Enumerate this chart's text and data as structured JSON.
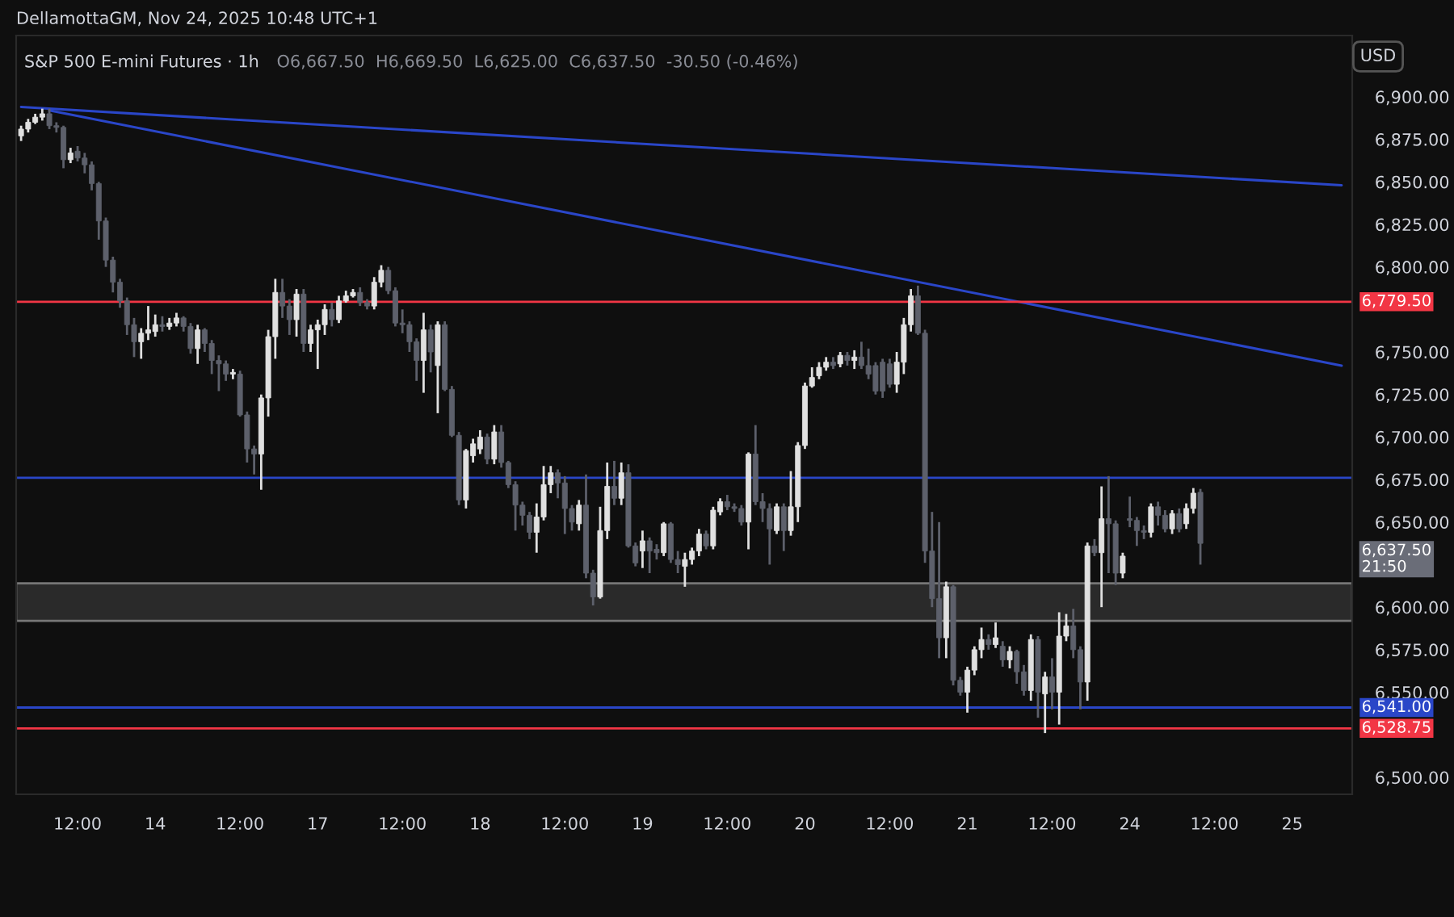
{
  "chart_data": {
    "type": "candlestick",
    "title": "S&P 500 E-mini Futures · 1h",
    "subtitle": "O6,667.50  H6,669.50  L6,625.00  C6,637.50  -30.50 (-0.46%)",
    "annotations": [
      "DellamottaGM, Nov 24, 2025 10:48 UTC+1",
      "USD",
      "6,637.50",
      "21:50"
    ],
    "categories": [
      null,
      null,
      null,
      null,
      null,
      null,
      null,
      null,
      "12:00",
      null,
      null,
      null,
      null,
      null,
      null,
      null,
      null,
      null,
      null,
      "14",
      null,
      null,
      null,
      null,
      null,
      null,
      null,
      null,
      null,
      null,
      null,
      "12:00",
      null,
      null,
      null,
      null,
      null,
      null,
      null,
      null,
      null,
      null,
      "17",
      null,
      null,
      null,
      null,
      null,
      null,
      null,
      null,
      null,
      null,
      null,
      "12:00",
      null,
      null,
      null,
      null,
      null,
      null,
      null,
      null,
      null,
      null,
      "18",
      null,
      null,
      null,
      null,
      null,
      null,
      null,
      null,
      null,
      null,
      null,
      "12:00",
      null,
      null,
      null,
      null,
      null,
      null,
      null,
      null,
      null,
      null,
      "19",
      null,
      null,
      null,
      null,
      null,
      null,
      null,
      null,
      null,
      null,
      null,
      "12:00",
      null,
      null,
      null,
      null,
      null,
      null,
      null,
      null,
      null,
      null,
      "20",
      null,
      null,
      null,
      null,
      null,
      null,
      null,
      null,
      null,
      null,
      null,
      "12:00",
      null,
      null,
      null,
      null,
      null,
      null,
      null,
      null,
      null,
      null,
      "21",
      null,
      null,
      null,
      null,
      null,
      null,
      null,
      null,
      null,
      null,
      null,
      "12:00",
      null,
      null,
      null,
      null,
      null,
      null,
      null,
      null,
      null,
      null,
      "24",
      null,
      null,
      null,
      null,
      null,
      null,
      null,
      null,
      null,
      null,
      null,
      "12:00",
      null,
      null,
      null,
      null,
      null,
      null,
      null,
      null,
      null,
      null,
      "25",
      null,
      null,
      null,
      null,
      null,
      null,
      null,
      null
    ],
    "ohlc": [
      [
        6877,
        6883,
        6874,
        6881
      ],
      [
        6881,
        6887,
        6879,
        6885
      ],
      [
        6885,
        6890,
        6884,
        6888
      ],
      [
        6888,
        6893,
        6886,
        6890
      ],
      [
        6890,
        6893,
        6881,
        6883
      ],
      [
        6883,
        6885,
        6879,
        6882
      ],
      [
        6882,
        6883,
        6858,
        6863
      ],
      [
        6863,
        6870,
        6861,
        6867
      ],
      [
        6868,
        6871,
        6862,
        6864
      ],
      [
        6864,
        6867,
        6855,
        6860
      ],
      [
        6860,
        6862,
        6845,
        6849
      ],
      [
        6849,
        6850,
        6816,
        6827
      ],
      [
        6827,
        6829,
        6800,
        6804
      ],
      [
        6804,
        6806,
        6785,
        6791
      ],
      [
        6791,
        6793,
        6776,
        6780
      ],
      [
        6780,
        6782,
        6760,
        6766
      ],
      [
        6766,
        6770,
        6747,
        6756
      ],
      [
        6756,
        6764,
        6746,
        6761
      ],
      [
        6761,
        6777,
        6757,
        6763
      ],
      [
        6762,
        6772,
        6759,
        6766
      ],
      [
        6766,
        6771,
        6762,
        6765
      ],
      [
        6765,
        6770,
        6763,
        6767
      ],
      [
        6767,
        6773,
        6765,
        6770
      ],
      [
        6770,
        6771,
        6762,
        6765
      ],
      [
        6765,
        6767,
        6749,
        6752
      ],
      [
        6752,
        6766,
        6743,
        6763
      ],
      [
        6763,
        6764,
        6750,
        6755
      ],
      [
        6755,
        6757,
        6737,
        6745
      ],
      [
        6745,
        6748,
        6727,
        6743
      ],
      [
        6743,
        6745,
        6733,
        6737
      ],
      [
        6737,
        6740,
        6734,
        6738
      ],
      [
        6737,
        6739,
        6712,
        6713
      ],
      [
        6713,
        6715,
        6685,
        6693
      ],
      [
        6693,
        6695,
        6678,
        6690
      ],
      [
        6690,
        6725,
        6669,
        6723
      ],
      [
        6723,
        6763,
        6712,
        6759
      ],
      [
        6759,
        6793,
        6746,
        6785
      ],
      [
        6785,
        6793,
        6770,
        6777
      ],
      [
        6777,
        6781,
        6760,
        6769
      ],
      [
        6769,
        6787,
        6759,
        6784
      ],
      [
        6784,
        6787,
        6750,
        6755
      ],
      [
        6755,
        6766,
        6750,
        6763
      ],
      [
        6763,
        6769,
        6740,
        6766
      ],
      [
        6766,
        6778,
        6760,
        6775
      ],
      [
        6775,
        6779,
        6765,
        6769
      ],
      [
        6769,
        6783,
        6767,
        6780
      ],
      [
        6780,
        6786,
        6779,
        6783
      ],
      [
        6783,
        6787,
        6782,
        6785
      ],
      [
        6785,
        6788,
        6777,
        6779
      ],
      [
        6779,
        6781,
        6775,
        6777
      ],
      [
        6777,
        6794,
        6775,
        6791
      ],
      [
        6791,
        6801,
        6788,
        6798
      ],
      [
        6798,
        6800,
        6784,
        6786
      ],
      [
        6786,
        6788,
        6765,
        6767
      ],
      [
        6767,
        6775,
        6761,
        6766
      ],
      [
        6766,
        6768,
        6750,
        6756
      ],
      [
        6756,
        6758,
        6733,
        6745
      ],
      [
        6745,
        6773,
        6726,
        6763
      ],
      [
        6763,
        6766,
        6738,
        6750
      ],
      [
        6742,
        6768,
        6714,
        6766
      ],
      [
        6766,
        6768,
        6727,
        6728
      ],
      [
        6728,
        6730,
        6700,
        6701
      ],
      [
        6701,
        6703,
        6660,
        6663
      ],
      [
        6663,
        6693,
        6658,
        6692
      ],
      [
        6689,
        6699,
        6685,
        6696
      ],
      [
        6693,
        6704,
        6690,
        6700
      ],
      [
        6700,
        6702,
        6684,
        6687
      ],
      [
        6687,
        6707,
        6684,
        6703
      ],
      [
        6703,
        6707,
        6682,
        6685
      ],
      [
        6685,
        6686,
        6670,
        6672
      ],
      [
        6672,
        6674,
        6645,
        6660
      ],
      [
        6660,
        6662,
        6648,
        6654
      ],
      [
        6654,
        6656,
        6640,
        6644
      ],
      [
        6644,
        6661,
        6632,
        6653
      ],
      [
        6653,
        6683,
        6651,
        6672
      ],
      [
        6672,
        6683,
        6667,
        6679
      ],
      [
        6679,
        6681,
        6664,
        6673
      ],
      [
        6673,
        6677,
        6643,
        6658
      ],
      [
        6658,
        6660,
        6645,
        6650
      ],
      [
        6649,
        6663,
        6645,
        6660
      ],
      [
        6660,
        6678,
        6617,
        6620
      ],
      [
        6620,
        6622,
        6601,
        6606
      ],
      [
        6606,
        6659,
        6605,
        6645
      ],
      [
        6645,
        6685,
        6640,
        6671
      ],
      [
        6671,
        6686,
        6660,
        6664
      ],
      [
        6664,
        6685,
        6660,
        6679
      ],
      [
        6679,
        6684,
        6635,
        6636
      ],
      [
        6636,
        6638,
        6624,
        6626
      ],
      [
        6633,
        6645,
        6623,
        6639
      ],
      [
        6639,
        6641,
        6620,
        6633
      ],
      [
        6634,
        6637,
        6628,
        6632
      ],
      [
        6632,
        6650,
        6630,
        6649
      ],
      [
        6649,
        6650,
        6626,
        6628
      ],
      [
        6628,
        6633,
        6620,
        6625
      ],
      [
        6624,
        6632,
        6612,
        6628
      ],
      [
        6628,
        6635,
        6625,
        6633
      ],
      [
        6633,
        6646,
        6630,
        6643
      ],
      [
        6643,
        6645,
        6634,
        6636
      ],
      [
        6636,
        6659,
        6634,
        6657
      ],
      [
        6656,
        6664,
        6654,
        6662
      ],
      [
        6662,
        6666,
        6657,
        6659
      ],
      [
        6659,
        6661,
        6656,
        6658
      ],
      [
        6658,
        6660,
        6648,
        6650
      ],
      [
        6650,
        6691,
        6634,
        6690
      ],
      [
        6690,
        6707,
        6660,
        6662
      ],
      [
        6662,
        6667,
        6650,
        6658
      ],
      [
        6658,
        6661,
        6625,
        6646
      ],
      [
        6645,
        6661,
        6643,
        6659
      ],
      [
        6659,
        6661,
        6633,
        6645
      ],
      [
        6645,
        6680,
        6642,
        6659
      ],
      [
        6659,
        6697,
        6650,
        6695
      ],
      [
        6695,
        6732,
        6693,
        6730
      ],
      [
        6730,
        6741,
        6729,
        6735
      ],
      [
        6736,
        6744,
        6734,
        6741
      ],
      [
        6741,
        6747,
        6739,
        6744
      ],
      [
        6744,
        6747,
        6740,
        6742
      ],
      [
        6743,
        6750,
        6741,
        6748
      ],
      [
        6748,
        6750,
        6742,
        6745
      ],
      [
        6745,
        6751,
        6740,
        6747
      ],
      [
        6747,
        6756,
        6740,
        6742
      ],
      [
        6742,
        6752,
        6734,
        6737
      ],
      [
        6742,
        6744,
        6725,
        6727
      ],
      [
        6744,
        6746,
        6723,
        6727
      ],
      [
        6743,
        6746,
        6729,
        6731
      ],
      [
        6731,
        6750,
        6726,
        6744
      ],
      [
        6744,
        6770,
        6737,
        6766
      ],
      [
        6766,
        6787,
        6762,
        6783
      ],
      [
        6783,
        6789,
        6760,
        6761
      ],
      [
        6761,
        6763,
        6626,
        6633
      ],
      [
        6633,
        6656,
        6600,
        6605
      ],
      [
        6605,
        6650,
        6570,
        6582
      ],
      [
        6582,
        6615,
        6570,
        6612
      ],
      [
        6612,
        6613,
        6554,
        6557
      ],
      [
        6557,
        6559,
        6548,
        6550
      ],
      [
        6550,
        6565,
        6538,
        6563
      ],
      [
        6563,
        6577,
        6560,
        6575
      ],
      [
        6575,
        6588,
        6570,
        6581
      ],
      [
        6581,
        6584,
        6575,
        6578
      ],
      [
        6578,
        6591,
        6576,
        6582
      ],
      [
        6577,
        6580,
        6565,
        6569
      ],
      [
        6569,
        6577,
        6564,
        6574
      ],
      [
        6574,
        6575,
        6555,
        6562
      ],
      [
        6562,
        6566,
        6548,
        6551
      ],
      [
        6551,
        6584,
        6545,
        6581
      ],
      [
        6581,
        6583,
        6535,
        6550
      ],
      [
        6549,
        6562,
        6526,
        6559
      ],
      [
        6559,
        6570,
        6540,
        6550
      ],
      [
        6550,
        6597,
        6531,
        6583
      ],
      [
        6583,
        6596,
        6580,
        6589
      ],
      [
        6589,
        6599,
        6570,
        6575
      ],
      [
        6575,
        6577,
        6540,
        6556
      ],
      [
        6556,
        6638,
        6545,
        6636
      ],
      [
        6636,
        6640,
        6630,
        6632
      ],
      [
        6632,
        6671,
        6600,
        6652
      ],
      [
        6652,
        6677,
        6620,
        6649
      ],
      [
        6649,
        6651,
        6613,
        6620
      ],
      [
        6620,
        6632,
        6617,
        6630
      ],
      [
        6652,
        6665,
        6647,
        6651
      ],
      [
        6651,
        6653,
        6636,
        6645
      ],
      [
        6645,
        6648,
        6640,
        6644
      ],
      [
        6644,
        6661,
        6641,
        6659
      ],
      [
        6659,
        6662,
        6648,
        6654
      ],
      [
        6654,
        6657,
        6644,
        6646
      ],
      [
        6646,
        6657,
        6643,
        6655
      ],
      [
        6655,
        6658,
        6644,
        6646
      ],
      [
        6649,
        6661,
        6646,
        6658
      ],
      [
        6658,
        6670,
        6655,
        6667
      ],
      [
        6667.5,
        6669.5,
        6625,
        6637.5
      ],
      null,
      null,
      null,
      null,
      null,
      null,
      null,
      null,
      null,
      null,
      null,
      null,
      null,
      null,
      null,
      null,
      null,
      null,
      null,
      null,
      null
    ],
    "series": [
      {
        "type": "line",
        "color": "#2a46c8",
        "values": [
          6894,
          null,
          null,
          null,
          null,
          null,
          null,
          null,
          null,
          null,
          null,
          null,
          null,
          null,
          null,
          null,
          null,
          null,
          null,
          null,
          null,
          null,
          null,
          null,
          null,
          null,
          null,
          null,
          null,
          null,
          null,
          null,
          null,
          null,
          null,
          null,
          null,
          null,
          null,
          null,
          null,
          null,
          null,
          null,
          null,
          null,
          null,
          null,
          null,
          null,
          null,
          null,
          null,
          null,
          null,
          null,
          null,
          null,
          null,
          null,
          null,
          null,
          null,
          null,
          null,
          null,
          null,
          null,
          null,
          null,
          null,
          null,
          null,
          null,
          null,
          null,
          null,
          null,
          null,
          null,
          null,
          null,
          null,
          null,
          null,
          null,
          null,
          null,
          null,
          null,
          null,
          null,
          null,
          null,
          null,
          null,
          null,
          null,
          null,
          null,
          null,
          null,
          null,
          null,
          null,
          null,
          null,
          null,
          null,
          null,
          null,
          null,
          null,
          null,
          null,
          null,
          null,
          null,
          null,
          null,
          null,
          null,
          null,
          null,
          null,
          null,
          null,
          null,
          null,
          null,
          null,
          null,
          null,
          null,
          null,
          null,
          null,
          null,
          null,
          null,
          null,
          null,
          null,
          null,
          null,
          null,
          null,
          null,
          null,
          null,
          null,
          null,
          null,
          null,
          null,
          null,
          null,
          null,
          null,
          null,
          null,
          null,
          null,
          null,
          null,
          null,
          null,
          null,
          null,
          null,
          null,
          null,
          null,
          null,
          null,
          null,
          null,
          null,
          null,
          null,
          null,
          null,
          null,
          null,
          null,
          null,
          null,
          6848,
          null
        ]
      },
      {
        "type": "line",
        "color": "#2a46c8",
        "values": [
          null,
          null,
          null,
          null,
          6892,
          null,
          null,
          null,
          null,
          null,
          null,
          null,
          null,
          null,
          null,
          null,
          null,
          null,
          null,
          null,
          null,
          null,
          null,
          null,
          null,
          null,
          null,
          null,
          null,
          null,
          null,
          null,
          null,
          null,
          null,
          null,
          null,
          null,
          null,
          null,
          null,
          null,
          null,
          null,
          null,
          null,
          null,
          null,
          null,
          null,
          null,
          null,
          null,
          null,
          null,
          null,
          null,
          null,
          null,
          null,
          null,
          null,
          null,
          null,
          null,
          null,
          null,
          null,
          null,
          null,
          null,
          null,
          null,
          null,
          null,
          null,
          null,
          null,
          null,
          null,
          null,
          null,
          null,
          null,
          null,
          null,
          null,
          null,
          null,
          null,
          null,
          null,
          null,
          null,
          null,
          null,
          null,
          null,
          null,
          null,
          null,
          null,
          null,
          null,
          null,
          null,
          null,
          null,
          null,
          null,
          null,
          null,
          null,
          null,
          null,
          null,
          null,
          null,
          null,
          null,
          null,
          null,
          null,
          null,
          null,
          null,
          null,
          null,
          null,
          null,
          null,
          null,
          null,
          null,
          null,
          null,
          null,
          null,
          null,
          null,
          null,
          null,
          null,
          null,
          null,
          null,
          null,
          null,
          null,
          null,
          null,
          null,
          null,
          null,
          null,
          null,
          null,
          null,
          null,
          null,
          null,
          null,
          null,
          null,
          null,
          null,
          null,
          null,
          null,
          null,
          null,
          null,
          null,
          null,
          null,
          null,
          null,
          null,
          null,
          null,
          null,
          null,
          null,
          null,
          null,
          null,
          null,
          6742,
          null
        ]
      }
    ],
    "ylim": [
      6490,
      6936
    ],
    "yticks": [
      {
        "value": 6500,
        "label": "6,500.00"
      },
      {
        "value": 6550,
        "label": "6,550.00"
      },
      {
        "value": 6575,
        "label": "6,575.00"
      },
      {
        "value": 6600,
        "label": "6,600.00"
      },
      {
        "value": 6650,
        "label": "6,650.00"
      },
      {
        "value": 6675,
        "label": "6,675.00"
      },
      {
        "value": 6700,
        "label": "6,700.00"
      },
      {
        "value": 6725,
        "label": "6,725.00"
      },
      {
        "value": 6750,
        "label": "6,750.00"
      },
      {
        "value": 6800,
        "label": "6,800.00"
      },
      {
        "value": 6825,
        "label": "6,825.00"
      },
      {
        "value": 6850,
        "label": "6,850.00"
      },
      {
        "value": 6875,
        "label": "6,875.00"
      },
      {
        "value": 6900,
        "label": "6,900.00"
      }
    ],
    "ref_lines": [
      {
        "axis": "y",
        "value": 6779.5,
        "label": "6,779.50",
        "color": "#f23645"
      },
      {
        "axis": "y",
        "value": 6676,
        "label": null,
        "color": "#2a46c8"
      },
      {
        "axis": "y",
        "value": 6541,
        "label": "6,541.00",
        "color": "#2a46c8"
      },
      {
        "axis": "y",
        "value": 6528.75,
        "label": "6,528.75",
        "color": "#f23645"
      }
    ],
    "bands": [
      {
        "axis": "y",
        "from": 6592,
        "to": 6614,
        "label": null,
        "color": "#2a2a2a"
      }
    ],
    "grid": false,
    "legend": false
  }
}
